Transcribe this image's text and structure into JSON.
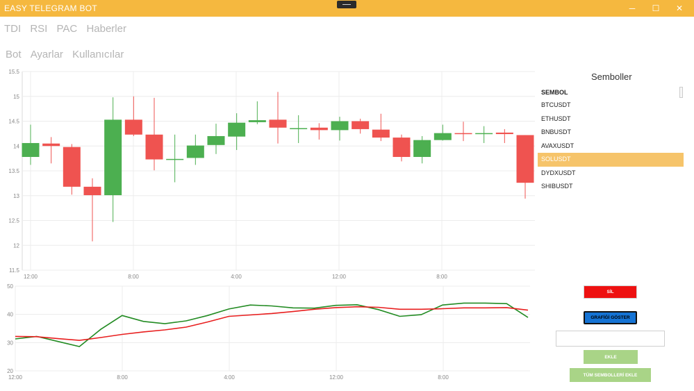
{
  "window": {
    "title": "EASY TELEGRAM BOT",
    "minimize_glyph": "─",
    "maximize_glyph": "☐",
    "close_glyph": "✕"
  },
  "tabs_primary": [
    {
      "label": "TDI",
      "active": true
    },
    {
      "label": "RSI",
      "active": false
    },
    {
      "label": "PAC",
      "active": false
    },
    {
      "label": "Haberler",
      "active": false
    }
  ],
  "tabs_secondary": [
    {
      "label": "Bot",
      "active": true
    },
    {
      "label": "Ayarlar",
      "active": false
    },
    {
      "label": "Kullanıcılar",
      "active": false
    }
  ],
  "chart_data": [
    {
      "type": "candlestick",
      "title": "",
      "x_tick_labels": [
        "12:00",
        "8:00",
        "4:00",
        "12:00",
        "8:00"
      ],
      "y_ticks": [
        11.5,
        12,
        12.5,
        13,
        13.5,
        14,
        14.5,
        15,
        15.5
      ],
      "ylim": [
        11.5,
        15.5
      ],
      "grid": true,
      "colors": {
        "up": "#4caf50",
        "down": "#ef5350"
      },
      "candles": [
        {
          "open": 13.78,
          "high": 14.43,
          "low": 13.62,
          "close": 14.06
        },
        {
          "open": 14.05,
          "high": 14.18,
          "low": 13.65,
          "close": 14.0
        },
        {
          "open": 13.98,
          "high": 14.04,
          "low": 13.02,
          "close": 13.18
        },
        {
          "open": 13.18,
          "high": 13.35,
          "low": 12.08,
          "close": 13.01
        },
        {
          "open": 13.01,
          "high": 14.98,
          "low": 12.47,
          "close": 14.53
        },
        {
          "open": 14.53,
          "high": 15.0,
          "low": 14.2,
          "close": 14.23
        },
        {
          "open": 14.23,
          "high": 14.97,
          "low": 13.51,
          "close": 13.73
        },
        {
          "open": 13.73,
          "high": 14.23,
          "low": 13.27,
          "close": 13.74
        },
        {
          "open": 13.76,
          "high": 14.23,
          "low": 13.62,
          "close": 14.01
        },
        {
          "open": 14.02,
          "high": 14.45,
          "low": 13.84,
          "close": 14.2
        },
        {
          "open": 14.19,
          "high": 14.66,
          "low": 13.92,
          "close": 14.47
        },
        {
          "open": 14.48,
          "high": 14.9,
          "low": 14.44,
          "close": 14.52
        },
        {
          "open": 14.53,
          "high": 15.09,
          "low": 14.05,
          "close": 14.37
        },
        {
          "open": 14.35,
          "high": 14.62,
          "low": 14.06,
          "close": 14.36
        },
        {
          "open": 14.37,
          "high": 14.46,
          "low": 14.13,
          "close": 14.32
        },
        {
          "open": 14.32,
          "high": 14.59,
          "low": 14.11,
          "close": 14.5
        },
        {
          "open": 14.5,
          "high": 14.55,
          "low": 14.25,
          "close": 14.34
        },
        {
          "open": 14.33,
          "high": 14.65,
          "low": 14.1,
          "close": 14.17
        },
        {
          "open": 14.17,
          "high": 14.23,
          "low": 13.69,
          "close": 13.78
        },
        {
          "open": 13.78,
          "high": 14.2,
          "low": 13.65,
          "close": 14.12
        },
        {
          "open": 14.12,
          "high": 14.43,
          "low": 14.11,
          "close": 14.26
        },
        {
          "open": 14.26,
          "high": 14.49,
          "low": 14.1,
          "close": 14.25
        },
        {
          "open": 14.25,
          "high": 14.4,
          "low": 14.06,
          "close": 14.26
        },
        {
          "open": 14.27,
          "high": 14.34,
          "low": 14.06,
          "close": 14.24
        },
        {
          "open": 14.22,
          "high": 14.22,
          "low": 12.94,
          "close": 13.26
        }
      ]
    },
    {
      "type": "line",
      "title": "",
      "x_tick_labels": [
        "12:00",
        "8:00",
        "4:00",
        "12:00",
        "8:00"
      ],
      "y_ticks": [
        20,
        30,
        40,
        50
      ],
      "ylim": [
        20,
        50
      ],
      "grid": true,
      "series": [
        {
          "color": "#228b22",
          "values": [
            31.3,
            32.2,
            30.4,
            28.6,
            34.7,
            39.6,
            37.5,
            36.7,
            37.7,
            39.6,
            41.9,
            43.3,
            43.0,
            42.3,
            42.2,
            43.2,
            43.4,
            41.7,
            39.3,
            39.9,
            43.3,
            44.0,
            44.0,
            43.8,
            38.9
          ]
        },
        {
          "color": "#e81e1e",
          "values": [
            32.2,
            32.1,
            31.4,
            30.8,
            31.8,
            32.9,
            33.8,
            34.5,
            35.5,
            37.3,
            39.3,
            39.8,
            40.3,
            41.0,
            41.8,
            42.4,
            42.7,
            42.5,
            41.8,
            41.8,
            42.0,
            42.3,
            42.3,
            42.4,
            41.5
          ]
        }
      ]
    }
  ],
  "symbols": {
    "title": "Semboller",
    "header": "SEMBOL",
    "items": [
      "BTCUSDT",
      "ETHUSDT",
      "BNBUSDT",
      "AVAXUSDT",
      "SOLUSDT",
      "DYDXUSDT",
      "SHIBUSDT"
    ],
    "selected": "SOLUSDT",
    "highlight_color": "#f6c46a"
  },
  "actions": {
    "delete_label": "SİL",
    "show_chart_label": "GRAFİĞİ GÖSTER",
    "symbol_input_value": "",
    "symbol_input_placeholder": "",
    "add_label": "EKLE",
    "add_all_label": "TÜM SEMBOLLERİ EKLE"
  }
}
